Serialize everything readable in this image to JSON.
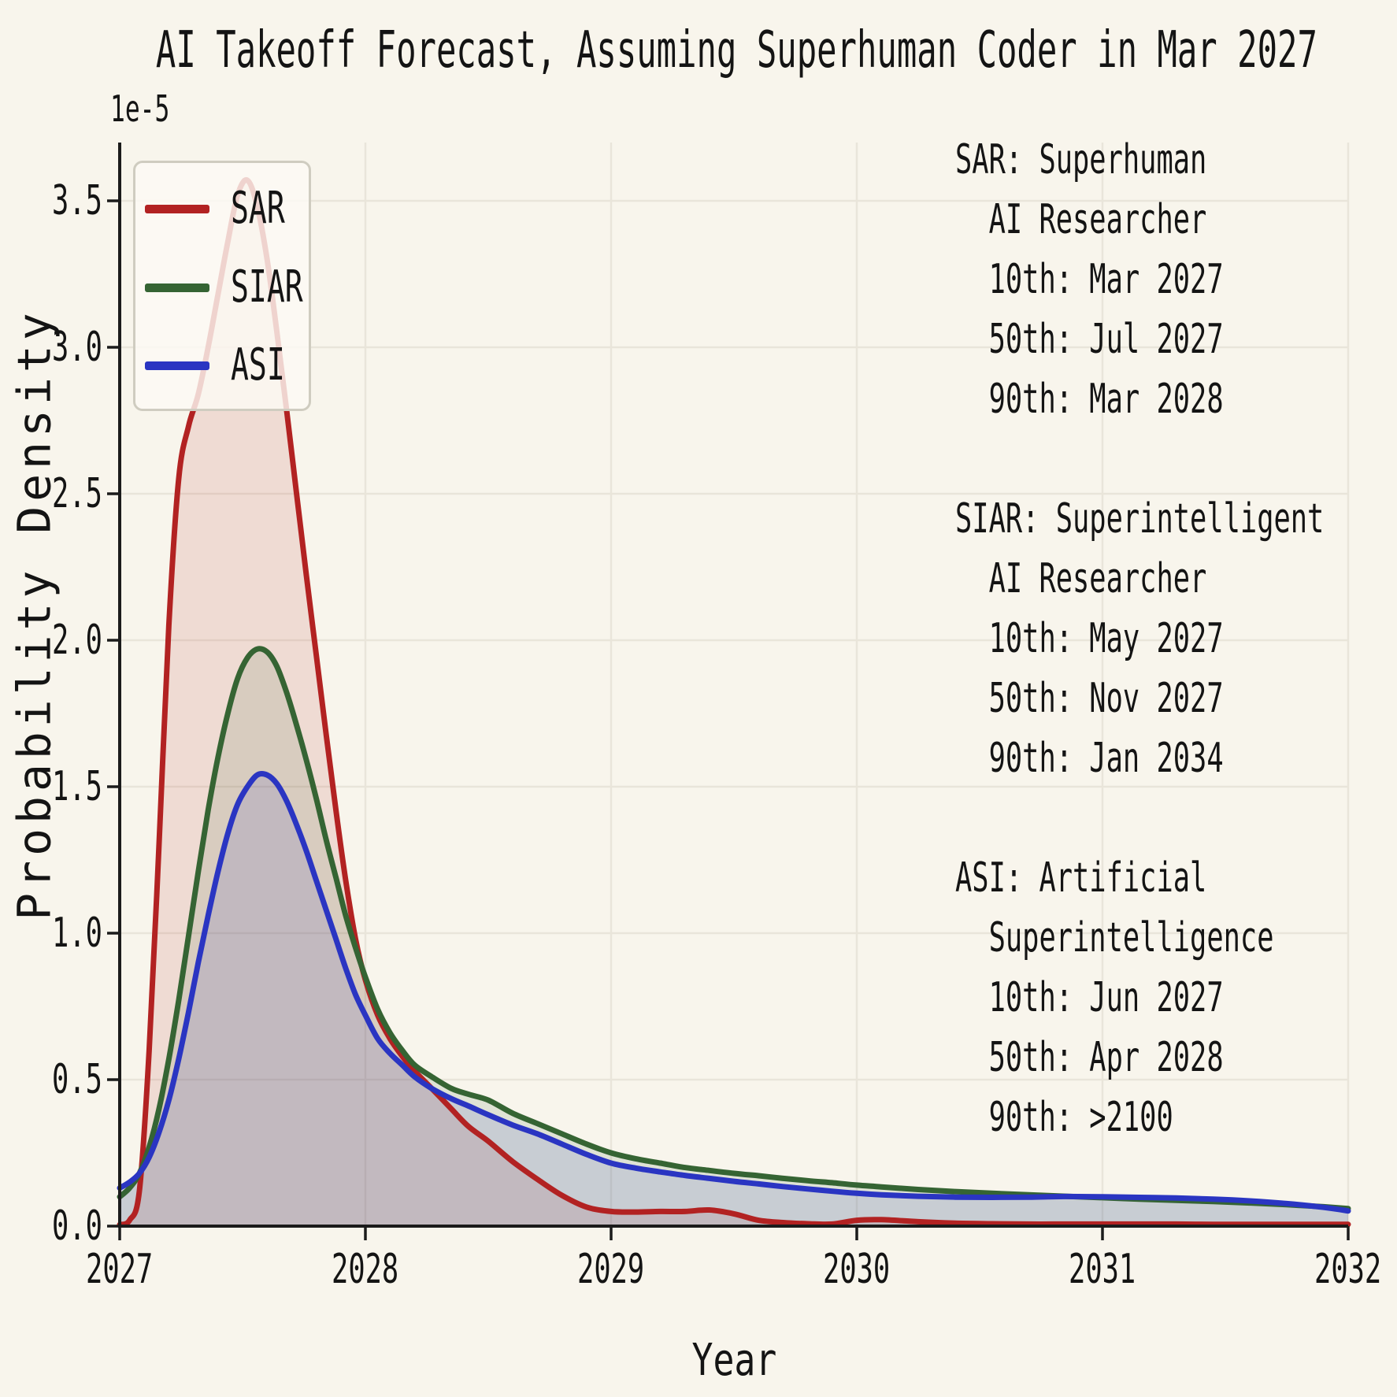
{
  "title": "AI Takeoff Forecast, Assuming Superhuman Coder in Mar 2027",
  "axes": {
    "xlabel": "Year",
    "ylabel": "Probability Density",
    "scale_label": "1e-5",
    "x_ticks": [
      "2027",
      "2028",
      "2029",
      "2030",
      "2031",
      "2032"
    ],
    "y_ticks": [
      "0.0",
      "0.5",
      "1.0",
      "1.5",
      "2.0",
      "2.5",
      "3.0",
      "3.5"
    ]
  },
  "legend": {
    "entries": [
      {
        "label": "SAR",
        "color": "#b22222"
      },
      {
        "label": "SIAR",
        "color": "#356433"
      },
      {
        "label": "ASI",
        "color": "#2a35c2"
      }
    ]
  },
  "annotation_lines": [
    "SAR: Superhuman",
    "  AI Researcher",
    "  10th: Mar 2027",
    "  50th: Jul 2027",
    "  90th: Mar 2028",
    "",
    "SIAR: Superintelligent",
    "  AI Researcher",
    "  10th: May 2027",
    "  50th: Nov 2027",
    "  90th: Jan 2034",
    "",
    "ASI: Artificial",
    "  Superintelligence",
    "  10th: Jun 2027",
    "  50th: Apr 2028",
    "  90th: >2100"
  ],
  "colors": {
    "background": "#f8f5ec",
    "grid": "#e9e5da",
    "axis": "#1b1b1b",
    "text": "#141414",
    "sar": "#b22222",
    "siar": "#356433",
    "asi": "#2a35c2"
  },
  "chart_data": {
    "type": "area",
    "title": "AI Takeoff Forecast, Assuming Superhuman Coder in Mar 2027",
    "xlabel": "Year",
    "ylabel": "Probability Density",
    "y_scale_factor": "1e-5",
    "xlim": [
      2027,
      2032
    ],
    "ylim": [
      0,
      3.7
    ],
    "grid": true,
    "legend_position": "upper left",
    "fill_opacity": 0.12,
    "line_width": 7,
    "x": [
      2027.0,
      2027.04,
      2027.08,
      2027.12,
      2027.16,
      2027.2,
      2027.24,
      2027.28,
      2027.32,
      2027.36,
      2027.4,
      2027.44,
      2027.48,
      2027.52,
      2027.56,
      2027.6,
      2027.64,
      2027.68,
      2027.72,
      2027.76,
      2027.8,
      2027.84,
      2027.88,
      2027.92,
      2027.96,
      2028.0,
      2028.05,
      2028.1,
      2028.15,
      2028.2,
      2028.27,
      2028.35,
      2028.42,
      2028.5,
      2028.6,
      2028.7,
      2028.8,
      2028.9,
      2029.0,
      2029.1,
      2029.2,
      2029.3,
      2029.4,
      2029.5,
      2029.6,
      2029.7,
      2029.8,
      2029.9,
      2030.0,
      2030.1,
      2030.25,
      2030.4,
      2030.55,
      2030.7,
      2030.85,
      2031.0,
      2031.15,
      2031.3,
      2031.45,
      2031.6,
      2031.75,
      2031.9,
      2032.0
    ],
    "series": [
      {
        "name": "SAR",
        "full_name": "Superhuman AI Researcher",
        "percentiles": {
          "p10": "Mar 2027",
          "p50": "Jul 2027",
          "p90": "Mar 2028"
        },
        "color": "#b22222",
        "peak_value_1e-5": 3.57,
        "values": [
          0.005,
          0.02,
          0.12,
          0.6,
          1.3,
          2.05,
          2.55,
          2.73,
          2.84,
          3.0,
          3.18,
          3.36,
          3.52,
          3.57,
          3.48,
          3.3,
          3.05,
          2.78,
          2.5,
          2.22,
          1.95,
          1.68,
          1.42,
          1.18,
          0.98,
          0.84,
          0.72,
          0.64,
          0.58,
          0.53,
          0.47,
          0.4,
          0.34,
          0.29,
          0.22,
          0.16,
          0.105,
          0.065,
          0.05,
          0.048,
          0.05,
          0.05,
          0.055,
          0.042,
          0.02,
          0.012,
          0.008,
          0.007,
          0.02,
          0.022,
          0.015,
          0.01,
          0.008,
          0.007,
          0.007,
          0.007,
          0.007,
          0.007,
          0.006,
          0.006,
          0.006,
          0.006,
          0.006
        ]
      },
      {
        "name": "SIAR",
        "full_name": "Superintelligent AI Researcher",
        "percentiles": {
          "p10": "May 2027",
          "p50": "Nov 2027",
          "p90": "Jan 2034"
        },
        "color": "#356433",
        "peak_value_1e-5": 1.97,
        "values": [
          0.1,
          0.13,
          0.18,
          0.27,
          0.4,
          0.57,
          0.77,
          0.99,
          1.21,
          1.42,
          1.6,
          1.75,
          1.87,
          1.94,
          1.97,
          1.96,
          1.91,
          1.82,
          1.71,
          1.59,
          1.46,
          1.32,
          1.19,
          1.06,
          0.95,
          0.85,
          0.74,
          0.66,
          0.6,
          0.55,
          0.51,
          0.47,
          0.45,
          0.43,
          0.385,
          0.35,
          0.315,
          0.28,
          0.25,
          0.23,
          0.215,
          0.2,
          0.19,
          0.18,
          0.172,
          0.163,
          0.155,
          0.148,
          0.14,
          0.134,
          0.125,
          0.118,
          0.112,
          0.107,
          0.102,
          0.097,
          0.092,
          0.088,
          0.084,
          0.079,
          0.073,
          0.066,
          0.06
        ]
      },
      {
        "name": "ASI",
        "full_name": "Artificial Superintelligence",
        "percentiles": {
          "p10": "Jun 2027",
          "p50": "Apr 2028",
          "p90": ">2100"
        },
        "color": "#2a35c2",
        "peak_value_1e-5": 1.54,
        "values": [
          0.13,
          0.15,
          0.18,
          0.235,
          0.32,
          0.43,
          0.57,
          0.73,
          0.9,
          1.06,
          1.21,
          1.34,
          1.44,
          1.5,
          1.54,
          1.54,
          1.51,
          1.45,
          1.37,
          1.28,
          1.18,
          1.08,
          0.98,
          0.88,
          0.79,
          0.72,
          0.64,
          0.59,
          0.55,
          0.51,
          0.47,
          0.435,
          0.41,
          0.38,
          0.345,
          0.315,
          0.28,
          0.245,
          0.215,
          0.198,
          0.185,
          0.173,
          0.163,
          0.153,
          0.144,
          0.135,
          0.127,
          0.119,
          0.112,
          0.107,
          0.102,
          0.099,
          0.098,
          0.099,
          0.101,
          0.1,
          0.098,
          0.096,
          0.092,
          0.086,
          0.077,
          0.064,
          0.052
        ]
      }
    ]
  }
}
